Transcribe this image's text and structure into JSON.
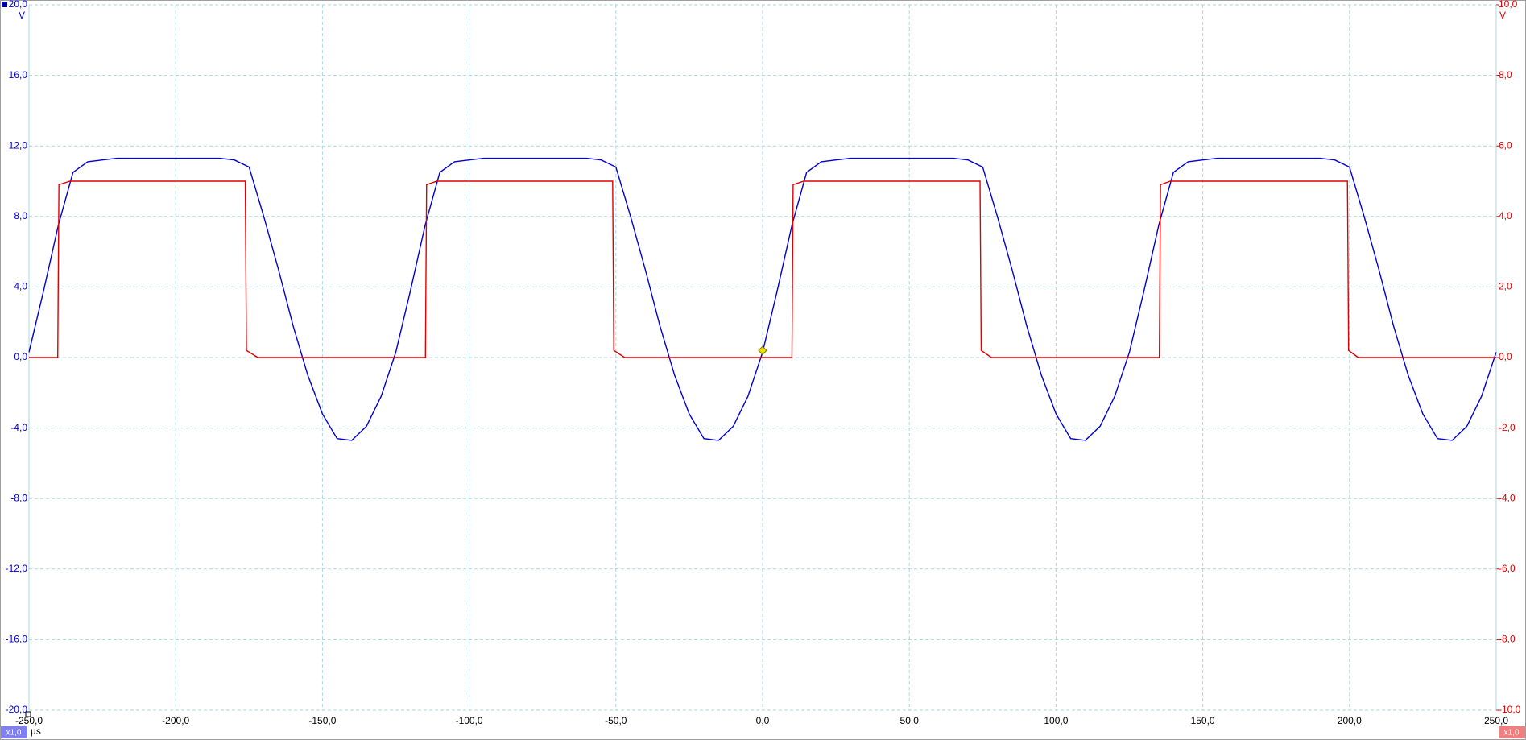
{
  "chart_data": {
    "type": "line",
    "x_unit": "µs",
    "y_unit": "V",
    "y2_unit": "V",
    "left_scale_badge": "x1,0",
    "right_scale_badge": "x1,0",
    "xlim": [
      -250,
      250
    ],
    "xticks": [
      {
        "value": -250,
        "label": "-250,0"
      },
      {
        "value": -200,
        "label": "-200,0"
      },
      {
        "value": -150,
        "label": "-150,0"
      },
      {
        "value": -100,
        "label": "-100,0"
      },
      {
        "value": -50,
        "label": "-50,0"
      },
      {
        "value": 0,
        "label": "0,0"
      },
      {
        "value": 50,
        "label": "50,0"
      },
      {
        "value": 100,
        "label": "100,0"
      },
      {
        "value": 150,
        "label": "150,0"
      },
      {
        "value": 200,
        "label": "200,0"
      },
      {
        "value": 250,
        "label": "250,0"
      }
    ],
    "ylim": [
      -20,
      20
    ],
    "yticks": [
      {
        "value": -20,
        "label": "-20,0"
      },
      {
        "value": -16,
        "label": "-16,0"
      },
      {
        "value": -12,
        "label": "-12,0"
      },
      {
        "value": -8,
        "label": "-8,0"
      },
      {
        "value": -4,
        "label": "-4,0"
      },
      {
        "value": 0,
        "label": "0,0"
      },
      {
        "value": 4,
        "label": "4,0"
      },
      {
        "value": 8,
        "label": "8,0"
      },
      {
        "value": 12,
        "label": "12,0"
      },
      {
        "value": 16,
        "label": "16,0"
      },
      {
        "value": 20,
        "label": "20,0"
      }
    ],
    "y2lim": [
      -10,
      10
    ],
    "y2ticks": [
      {
        "value": -10,
        "label": "-10,0"
      },
      {
        "value": -8,
        "label": "-8,0"
      },
      {
        "value": -6,
        "label": "-6,0"
      },
      {
        "value": -4,
        "label": "-4,0"
      },
      {
        "value": -2,
        "label": "-2,0"
      },
      {
        "value": 0,
        "label": "0,0"
      },
      {
        "value": 2,
        "label": "2,0"
      },
      {
        "value": 4,
        "label": "4,0"
      },
      {
        "value": 6,
        "label": "6,0"
      },
      {
        "value": 8,
        "label": "8,0"
      },
      {
        "value": 10,
        "label": "10,0"
      }
    ],
    "grid": true,
    "trigger": {
      "x": 0,
      "y": 0.4,
      "color": "#f0e000"
    },
    "series": [
      {
        "color": "#0000d0",
        "axis": "y",
        "x": [
          -250,
          -245,
          -240,
          -235,
          -230,
          -225,
          -220,
          -215,
          -210,
          -205,
          -200,
          -195,
          -190,
          -185,
          -180,
          -175,
          -170,
          -165,
          -160,
          -155,
          -150,
          -145,
          -140,
          -135,
          -130,
          -125,
          -120,
          -115,
          -110,
          -105,
          -100,
          -95,
          -90,
          -85,
          -80,
          -75,
          -70,
          -65,
          -60,
          -55,
          -50,
          -45,
          -40,
          -35,
          -30,
          -25,
          -20,
          -15,
          -10,
          -5,
          0,
          5,
          10,
          15,
          20,
          25,
          30,
          35,
          40,
          45,
          50,
          55,
          60,
          65,
          70,
          75,
          80,
          85,
          90,
          95,
          100,
          105,
          110,
          115,
          120,
          125,
          130,
          135,
          140,
          145,
          150,
          155,
          160,
          165,
          170,
          175,
          180,
          185,
          190,
          195,
          200,
          205,
          210,
          215,
          220,
          225,
          230,
          235,
          240,
          245,
          250
        ],
        "values": [
          0.3,
          3.8,
          7.5,
          10.5,
          11.1,
          11.2,
          11.3,
          11.3,
          11.3,
          11.3,
          11.3,
          11.3,
          11.3,
          11.3,
          11.2,
          10.8,
          8.0,
          5.0,
          1.8,
          -1.0,
          -3.2,
          -4.6,
          -4.7,
          -3.9,
          -2.2,
          0.3,
          3.8,
          7.5,
          10.5,
          11.1,
          11.2,
          11.3,
          11.3,
          11.3,
          11.3,
          11.3,
          11.3,
          11.3,
          11.3,
          11.2,
          10.8,
          8.0,
          5.0,
          1.8,
          -1.0,
          -3.2,
          -4.6,
          -4.7,
          -3.9,
          -2.2,
          0.3,
          3.8,
          7.5,
          10.5,
          11.1,
          11.2,
          11.3,
          11.3,
          11.3,
          11.3,
          11.3,
          11.3,
          11.3,
          11.3,
          11.2,
          10.8,
          8.0,
          5.0,
          1.8,
          -1.0,
          -3.2,
          -4.6,
          -4.7,
          -3.9,
          -2.2,
          0.3,
          3.8,
          7.5,
          10.5,
          11.1,
          11.2,
          11.3,
          11.3,
          11.3,
          11.3,
          11.3,
          11.3,
          11.3,
          11.3,
          11.2,
          10.8,
          8.0,
          5.0,
          1.8,
          -1.0,
          -3.2,
          -4.6,
          -4.7,
          -3.9,
          -2.2,
          0.3
        ]
      },
      {
        "color": "#e00000",
        "axis": "y2",
        "x": [
          -250,
          -240.2,
          -239.8,
          -236,
          -176.3,
          -175.9,
          -172,
          -114.9,
          -114.5,
          -111,
          -51.1,
          -50.7,
          -47,
          10.0,
          10.4,
          14,
          74.1,
          74.5,
          78,
          135.2,
          135.6,
          139,
          199.3,
          199.7,
          203,
          250
        ],
        "values": [
          0,
          0,
          4.9,
          5.0,
          5.0,
          0.2,
          0,
          0,
          4.9,
          5.0,
          5.0,
          0.2,
          0,
          0,
          4.9,
          5.0,
          5.0,
          0.2,
          0,
          0,
          4.9,
          5.0,
          5.0,
          0.2,
          0,
          0
        ]
      }
    ]
  }
}
